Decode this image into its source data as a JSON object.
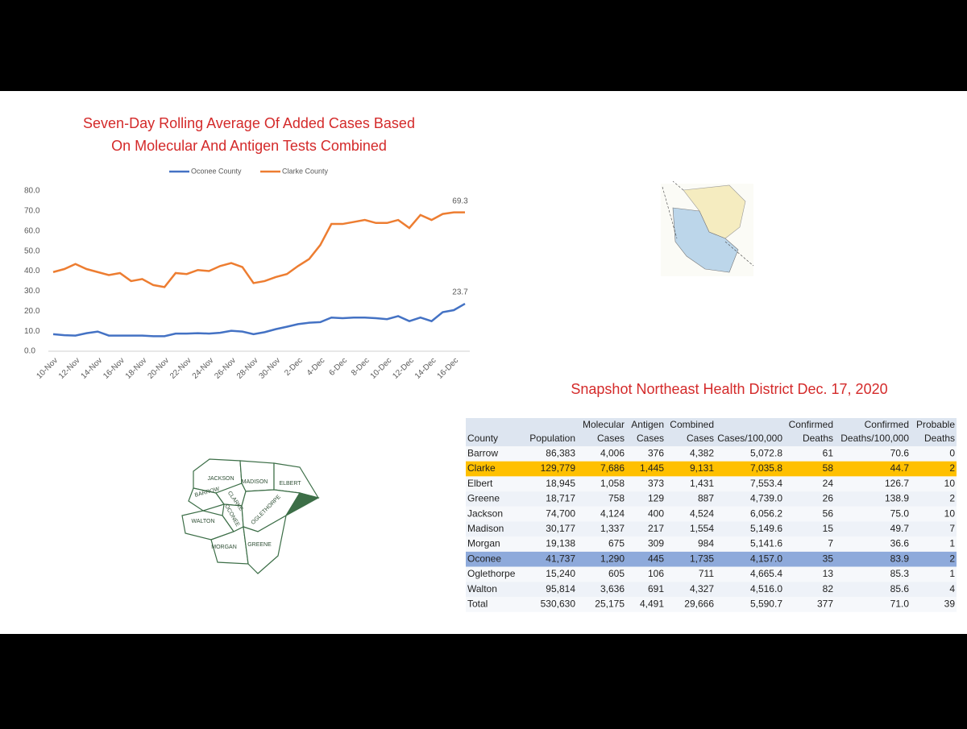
{
  "chart_data": {
    "type": "line",
    "title": [
      "Seven-Day Rolling Average Of  Added Cases Based",
      "On Molecular And Antigen Tests Combined"
    ],
    "categories": [
      "10-Nov",
      null,
      "12-Nov",
      null,
      "14-Nov",
      null,
      "16-Nov",
      null,
      "18-Nov",
      null,
      "20-Nov",
      null,
      "22-Nov",
      null,
      "24-Nov",
      null,
      "26-Nov",
      null,
      "28-Nov",
      null,
      "30-Nov",
      null,
      "2-Dec",
      null,
      "4-Dec",
      null,
      "6-Dec",
      null,
      "8-Dec",
      null,
      "10-Dec",
      null,
      "12-Dec",
      null,
      "14-Dec",
      null,
      "16-Dec",
      null
    ],
    "series": [
      {
        "name": "Oconee County",
        "color": "#4472c4",
        "values": [
          8.5,
          8,
          7.8,
          9,
          9.8,
          7.8,
          7.8,
          7.8,
          7.8,
          7.5,
          7.5,
          8.8,
          8.8,
          9,
          8.8,
          9.2,
          10.2,
          9.8,
          8.5,
          9.5,
          11,
          12.2,
          13.5,
          14.2,
          14.5,
          16.8,
          16.5,
          16.8,
          16.8,
          16.5,
          16,
          17.5,
          15,
          16.8,
          15,
          19.5,
          20.5,
          23.7
        ]
      },
      {
        "name": "Clarke County",
        "color": "#ed7d31",
        "values": [
          39.5,
          41,
          43.5,
          41,
          39.5,
          38,
          39,
          35,
          36,
          33,
          32,
          39,
          38.5,
          40.5,
          40,
          42.5,
          44,
          42,
          34,
          35,
          37,
          38.5,
          42.5,
          46,
          53,
          63.5,
          63.5,
          64.5,
          65.5,
          64,
          64,
          65.5,
          61.5,
          68,
          65.5,
          68.5,
          69.3,
          69.3
        ]
      }
    ],
    "ylim": [
      0,
      80
    ],
    "yticks": [
      {
        "value": 0,
        "label": "0.0"
      },
      {
        "value": 10,
        "label": "10.0"
      },
      {
        "value": 20,
        "label": "20.0"
      },
      {
        "value": 30,
        "label": "30.0"
      },
      {
        "value": 40,
        "label": "40.0"
      },
      {
        "value": 50,
        "label": "50.0"
      },
      {
        "value": 60,
        "label": "60.0"
      },
      {
        "value": 70,
        "label": "70.0"
      },
      {
        "value": 80,
        "label": "80.0"
      }
    ],
    "legend": "top"
  },
  "map_labels": [
    "JACKSON",
    "MADISON",
    "ELBERT",
    "BARROW",
    "CLARKE",
    "OCONEE",
    "OGLETHORPE",
    "WALTON",
    "MORGAN",
    "GREENE"
  ],
  "table": {
    "title": "Snapshot Northeast Health District Dec. 17, 2020",
    "header": [
      [
        "County"
      ],
      [
        "Population"
      ],
      [
        "Molecular",
        "Cases"
      ],
      [
        "Antigen",
        "Cases"
      ],
      [
        "Combined",
        "Cases"
      ],
      [
        "Cases/100,000"
      ],
      [
        "Confirmed",
        "Deaths"
      ],
      [
        "Confirmed",
        "Deaths/100,000"
      ],
      [
        "Probable",
        "Deaths"
      ]
    ],
    "rows": [
      {
        "cells": [
          "Barrow",
          "86,383",
          "4,006",
          "376",
          "4,382",
          "5,072.8",
          "61",
          "70.6",
          "0"
        ]
      },
      {
        "cells": [
          "Clarke",
          "129,779",
          "7,686",
          "1,445",
          "9,131",
          "7,035.8",
          "58",
          "44.7",
          "2"
        ],
        "color": "#ffc000"
      },
      {
        "cells": [
          "Elbert",
          "18,945",
          "1,058",
          "373",
          "1,431",
          "7,553.4",
          "24",
          "126.7",
          "10"
        ]
      },
      {
        "cells": [
          "Greene",
          "18,717",
          "758",
          "129",
          "887",
          "4,739.0",
          "26",
          "138.9",
          "2"
        ]
      },
      {
        "cells": [
          "Jackson",
          "74,700",
          "4,124",
          "400",
          "4,524",
          "6,056.2",
          "56",
          "75.0",
          "10"
        ]
      },
      {
        "cells": [
          "Madison",
          "30,177",
          "1,337",
          "217",
          "1,554",
          "5,149.6",
          "15",
          "49.7",
          "7"
        ]
      },
      {
        "cells": [
          "Morgan",
          "19,138",
          "675",
          "309",
          "984",
          "5,141.6",
          "7",
          "36.6",
          "1"
        ]
      },
      {
        "cells": [
          "Oconee",
          "41,737",
          "1,290",
          "445",
          "1,735",
          "4,157.0",
          "35",
          "83.9",
          "2"
        ],
        "color": "#8eaadb"
      },
      {
        "cells": [
          "Oglethorpe",
          "15,240",
          "605",
          "106",
          "711",
          "4,665.4",
          "13",
          "85.3",
          "1"
        ]
      },
      {
        "cells": [
          "Walton",
          "95,814",
          "3,636",
          "691",
          "4,327",
          "4,516.0",
          "82",
          "85.6",
          "4"
        ]
      },
      {
        "cells": [
          "Total",
          "530,630",
          "25,175",
          "4,491",
          "29,666",
          "5,590.7",
          "377",
          "71.0",
          "39"
        ]
      }
    ]
  }
}
